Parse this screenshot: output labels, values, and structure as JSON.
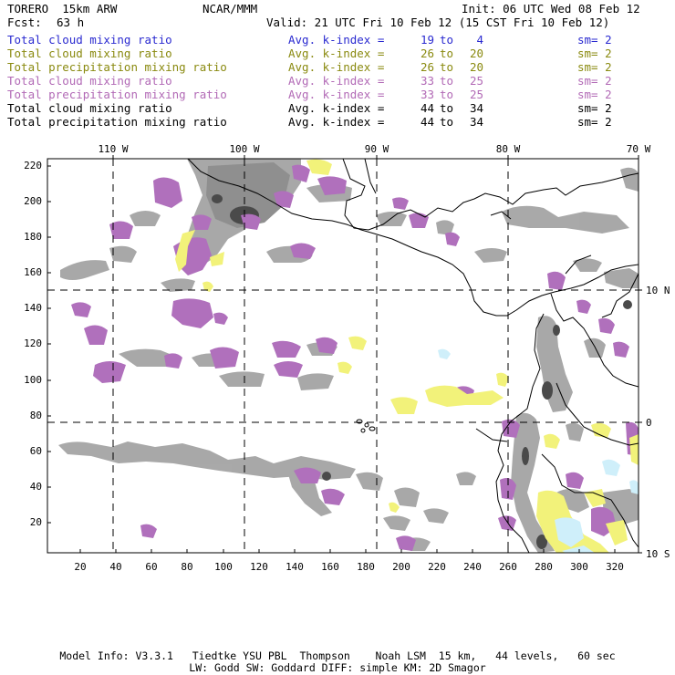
{
  "header": {
    "model": "TORERO  15km ARW",
    "org": "NCAR/MMM",
    "init": "Init: 06 UTC Wed 08 Feb 12",
    "fcst_label": "Fcst:",
    "fcst_value": "63 h",
    "valid": "Valid: 21 UTC Fri 10 Feb 12 (15 CST Fri 10 Feb 12)"
  },
  "legend": [
    {
      "label": "Total cloud mixing ratio",
      "avg": "Avg. k-index =",
      "lo": "19",
      "to": "to",
      "hi": "4",
      "sm": "sm= 2",
      "color": "#2a2ad0"
    },
    {
      "label": "Total cloud mixing ratio",
      "avg": "Avg. k-index =",
      "lo": "26",
      "to": "to",
      "hi": "20",
      "sm": "sm= 2",
      "color": "#8a8a10"
    },
    {
      "label": "Total precipitation mixing ratio",
      "avg": "Avg. k-index =",
      "lo": "26",
      "to": "to",
      "hi": "20",
      "sm": "sm= 2",
      "color": "#8a8a10"
    },
    {
      "label": "Total cloud mixing ratio",
      "avg": "Avg. k-index =",
      "lo": "33",
      "to": "to",
      "hi": "25",
      "sm": "sm= 2",
      "color": "#b26ab6"
    },
    {
      "label": "Total precipitation mixing ratio",
      "avg": "Avg. k-index =",
      "lo": "33",
      "to": "to",
      "hi": "25",
      "sm": "sm= 2",
      "color": "#b26ab6"
    },
    {
      "label": "Total cloud mixing ratio",
      "avg": "Avg. k-index =",
      "lo": "44",
      "to": "to",
      "hi": "34",
      "sm": "sm= 2",
      "color": "#000000"
    },
    {
      "label": "Total precipitation mixing ratio",
      "avg": "Avg. k-index =",
      "lo": "44",
      "to": "to",
      "hi": "34",
      "sm": "sm= 2",
      "color": "#000000"
    }
  ],
  "map": {
    "lon_labels": [
      "110 W",
      "100 W",
      "90 W",
      "80 W",
      "70 W"
    ],
    "lat_labels": [
      "10 N",
      "0",
      "10 S"
    ],
    "y_ticks": [
      "220",
      "200",
      "180",
      "160",
      "140",
      "120",
      "100",
      "80",
      "60",
      "40",
      "20"
    ],
    "x_ticks": [
      "20",
      "40",
      "60",
      "80",
      "100",
      "120",
      "140",
      "160",
      "180",
      "200",
      "220",
      "240",
      "260",
      "280",
      "300",
      "320"
    ],
    "colors": {
      "gray": "#a4a4a4",
      "dark_gray": "#5a5a5a",
      "purple": "#b070bc",
      "yellow": "#f2f27a",
      "light_blue": "#cfeffa",
      "grid": "#000000"
    }
  },
  "footer": {
    "line1": "Model Info: V3.3.1   Tiedtke YSU PBL  Thompson    Noah LSM  15 km,   44 levels,   60 sec",
    "line2": "LW: Godd SW: Goddard DIFF: simple KM: 2D Smagor"
  }
}
